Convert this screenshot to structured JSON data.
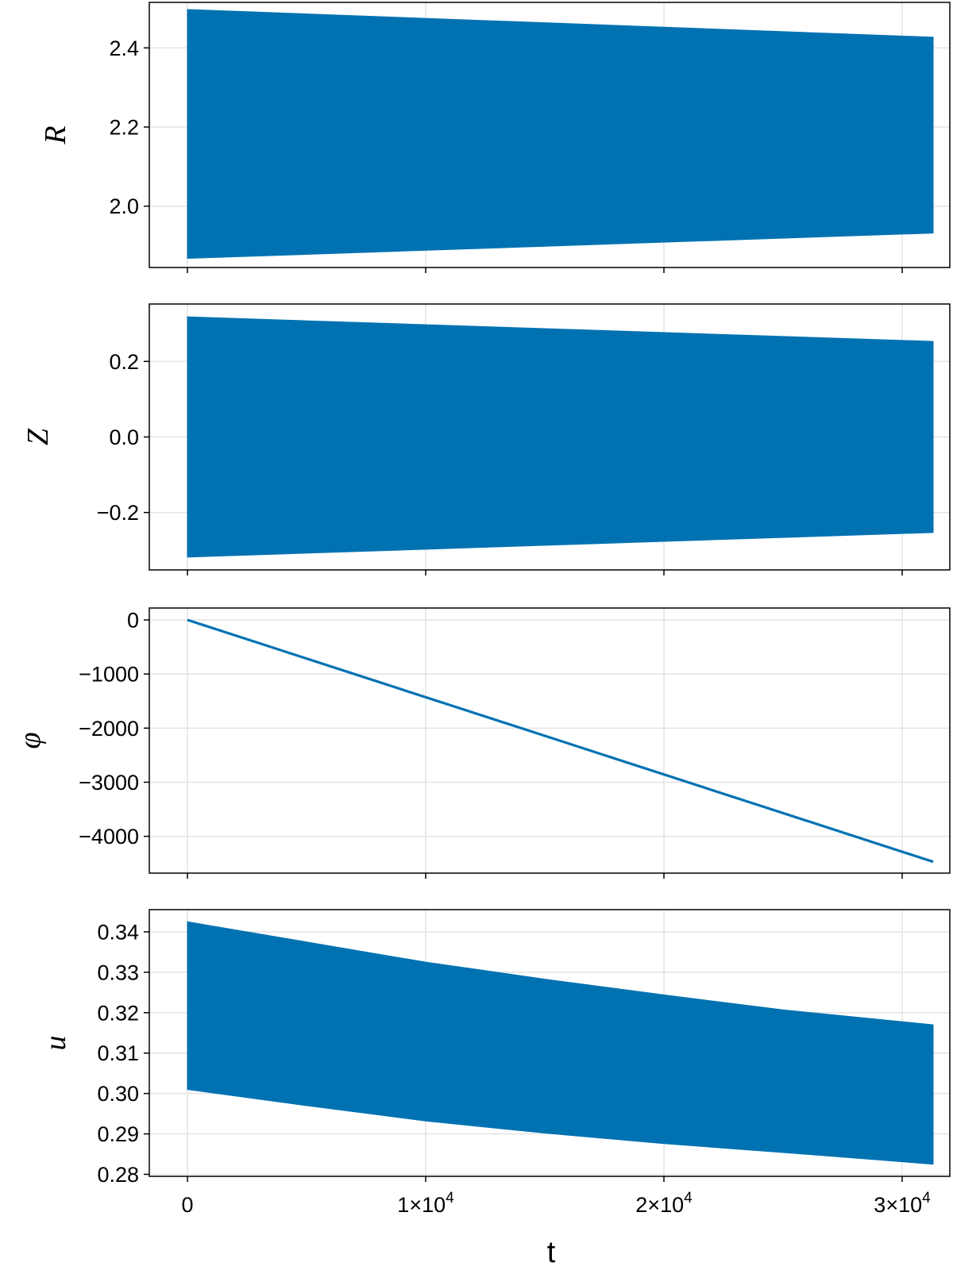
{
  "chart_data": [
    {
      "type": "area",
      "ylabel": "R",
      "xlabel": "",
      "xlim": [
        -1600,
        32000
      ],
      "ylim": [
        1.845,
        2.515
      ],
      "yticks": [
        2.0,
        2.2,
        2.4
      ],
      "ytick_labels": [
        "2.0",
        "2.2",
        "2.4"
      ],
      "xticks": [
        0,
        10000,
        20000,
        30000
      ],
      "grid": true,
      "series": [
        {
          "x": [
            0,
            31300
          ],
          "upper": [
            2.497,
            2.427
          ],
          "lower": [
            1.868,
            1.932
          ]
        }
      ]
    },
    {
      "type": "area",
      "ylabel": "Z",
      "xlabel": "",
      "xlim": [
        -1600,
        32000
      ],
      "ylim": [
        -0.352,
        0.352
      ],
      "yticks": [
        -0.2,
        0.0,
        0.2
      ],
      "ytick_labels": [
        "−0.2",
        "0.0",
        "0.2"
      ],
      "xticks": [
        0,
        10000,
        20000,
        30000
      ],
      "grid": true,
      "series": [
        {
          "x": [
            0,
            31300
          ],
          "upper": [
            0.318,
            0.253
          ],
          "lower": [
            -0.318,
            -0.253
          ]
        }
      ]
    },
    {
      "type": "line",
      "ylabel": "φ",
      "xlabel": "",
      "xlim": [
        -1600,
        32000
      ],
      "ylim": [
        -4680,
        220
      ],
      "yticks": [
        -4000,
        -3000,
        -2000,
        -1000,
        0
      ],
      "ytick_labels": [
        "−4000",
        "−3000",
        "−2000",
        "−1000",
        "0"
      ],
      "xticks": [
        0,
        10000,
        20000,
        30000
      ],
      "grid": true,
      "series": [
        {
          "x": [
            0,
            31300
          ],
          "y": [
            0,
            -4470
          ]
        }
      ]
    },
    {
      "type": "area",
      "ylabel": "u",
      "xlabel": "t",
      "xlim": [
        -1600,
        32000
      ],
      "ylim": [
        0.2795,
        0.3455
      ],
      "yticks": [
        0.28,
        0.29,
        0.3,
        0.31,
        0.32,
        0.33,
        0.34
      ],
      "ytick_labels": [
        "0.28",
        "0.29",
        "0.30",
        "0.31",
        "0.32",
        "0.33",
        "0.34"
      ],
      "xticks": [
        0,
        10000,
        20000,
        30000
      ],
      "xtick_labels": [
        {
          "mant": "0",
          "exp": ""
        },
        {
          "mant": "1×10",
          "exp": "4"
        },
        {
          "mant": "2×10",
          "exp": "4"
        },
        {
          "mant": "3×10",
          "exp": "4"
        }
      ],
      "grid": true,
      "series": [
        {
          "x": [
            0,
            5000,
            10000,
            15000,
            20000,
            25000,
            31300
          ],
          "upper": [
            0.3425,
            0.3375,
            0.3325,
            0.3283,
            0.3244,
            0.3207,
            0.317
          ],
          "lower": [
            0.301,
            0.297,
            0.2932,
            0.2902,
            0.2876,
            0.2854,
            0.2825
          ]
        }
      ]
    }
  ],
  "colors": {
    "series": "#0072b2",
    "grid": "#e3e3e3",
    "axis": "#000000"
  }
}
